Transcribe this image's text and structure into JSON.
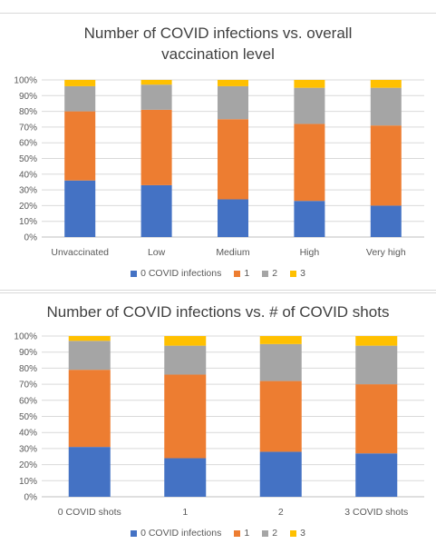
{
  "chart_data": [
    {
      "type": "bar",
      "stacked": "percent",
      "title_lines": [
        "Number of COVID infections vs. overall",
        "vaccination level"
      ],
      "categories": [
        "Unvaccinated",
        "Low",
        "Medium",
        "High",
        "Very high"
      ],
      "series": [
        {
          "name": "0 COVID infections",
          "color": "#4472c4",
          "values": [
            36,
            33,
            24,
            23,
            20
          ]
        },
        {
          "name": "1",
          "color": "#ed7d31",
          "values": [
            44,
            48,
            51,
            49,
            51
          ]
        },
        {
          "name": "2",
          "color": "#a5a5a5",
          "values": [
            16,
            16,
            21,
            23,
            24
          ]
        },
        {
          "name": "3",
          "color": "#ffc000",
          "values": [
            4,
            3,
            4,
            5,
            5
          ]
        }
      ],
      "yticks": [
        "0%",
        "10%",
        "20%",
        "30%",
        "40%",
        "50%",
        "60%",
        "70%",
        "80%",
        "90%",
        "100%"
      ],
      "ylim": [
        0,
        100
      ],
      "grid": true,
      "legend_position": "bottom"
    },
    {
      "type": "bar",
      "stacked": "percent",
      "title_lines": [
        "Number of COVID infections vs. # of COVID shots"
      ],
      "categories": [
        "0 COVID shots",
        "1",
        "2",
        "3 COVID shots"
      ],
      "series": [
        {
          "name": "0 COVID infections",
          "color": "#4472c4",
          "values": [
            31,
            24,
            28,
            27
          ]
        },
        {
          "name": "1",
          "color": "#ed7d31",
          "values": [
            48,
            52,
            44,
            43
          ]
        },
        {
          "name": "2",
          "color": "#a5a5a5",
          "values": [
            18,
            18,
            23,
            24
          ]
        },
        {
          "name": "3",
          "color": "#ffc000",
          "values": [
            3,
            6,
            5,
            6
          ]
        }
      ],
      "yticks": [
        "0%",
        "10%",
        "20%",
        "30%",
        "40%",
        "50%",
        "60%",
        "70%",
        "80%",
        "90%",
        "100%"
      ],
      "ylim": [
        0,
        100
      ],
      "grid": true,
      "legend_position": "bottom"
    }
  ]
}
